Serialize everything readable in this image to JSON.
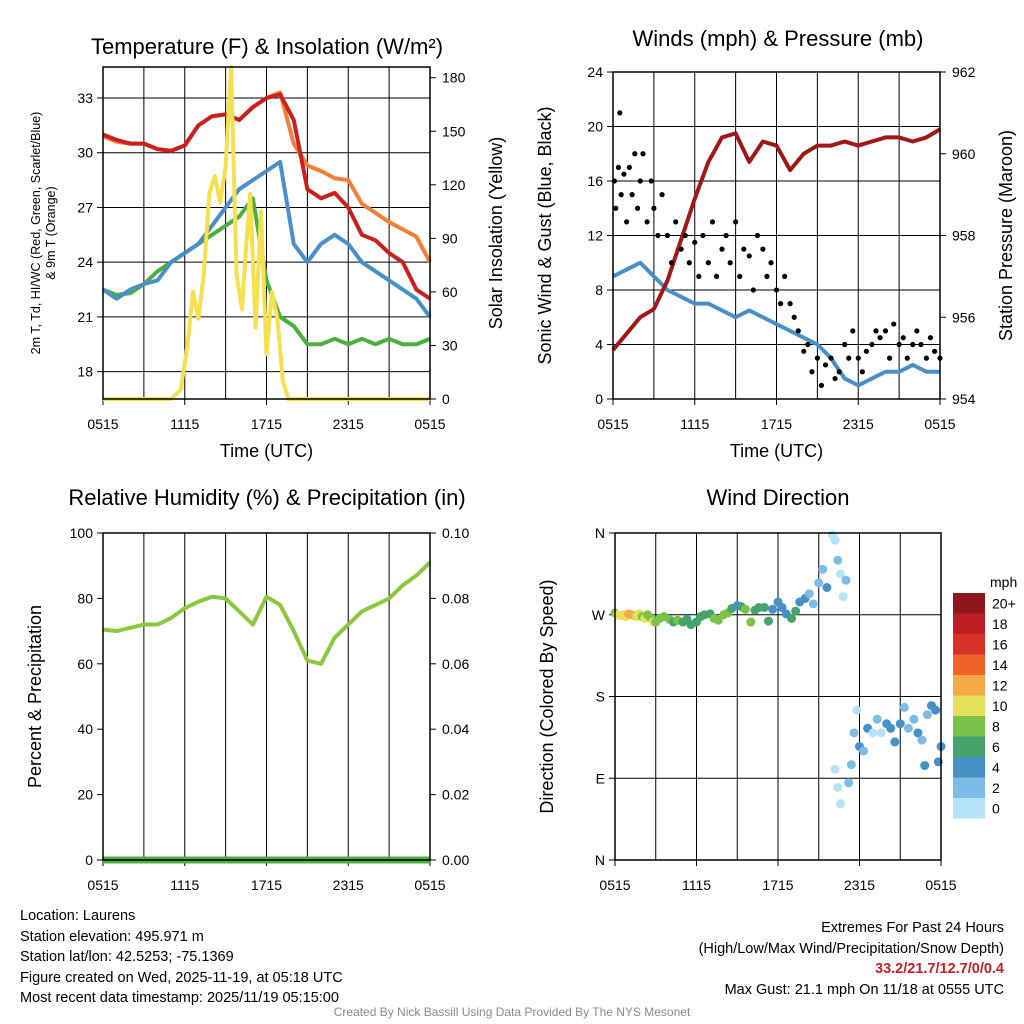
{
  "footer": {
    "location": "Location: Laurens",
    "elevation": "Station elevation: 495.971 m",
    "latlon": "Station lat/lon: 42.5253; -75.1369",
    "created": "Figure created on Wed, 2025-11-19, at 05:18 UTC",
    "recent": "Most recent data timestamp: 2025/11/19 05:15:00",
    "extremes_title": "Extremes For Past 24 Hours",
    "extremes_sub": "(High/Low/Max Wind/Precipitation/Snow Depth)",
    "extremes_values": "33.2/21.7/12.7/0/0.4",
    "max_gust": "Max Gust: 21.1 mph On 11/18 at 0555 UTC",
    "credit": "Created By Nick Bassill Using Data Provided By The NYS Mesonet"
  },
  "chart_data": [
    {
      "type": "line",
      "title": "Temperature (F) & Insolation (W/m²)",
      "xlabel": "Time (UTC)",
      "ylabel": [
        "2m T, Td, HI/WC (Red, Green, Scarlet/Blue)",
        "& 9m T (Orange)"
      ],
      "y2label": "Solar Insolation (Yellow)",
      "xticks": [
        "0515",
        "1115",
        "1715",
        "2315",
        "0515"
      ],
      "ylim": [
        16.5,
        34.7
      ],
      "yticks": [
        18,
        21,
        24,
        27,
        30,
        33
      ],
      "y2lim": [
        0,
        186
      ],
      "y2ticks": [
        0,
        30,
        60,
        90,
        120,
        150,
        180
      ],
      "hgrid": true,
      "x": [
        0,
        1,
        2,
        3,
        4,
        5,
        6,
        7,
        8,
        9,
        10,
        11,
        12,
        13,
        14,
        15,
        16,
        17,
        18,
        19,
        20,
        21,
        22,
        23,
        24
      ],
      "series": [
        {
          "name": "9m T",
          "color": "#f0803a",
          "axis": "y",
          "values": [
            30.9,
            30.6,
            30.5,
            30.5,
            30.2,
            30.1,
            30.4,
            31.5,
            32.0,
            32.1,
            31.8,
            32.5,
            33.0,
            33.3,
            30.5,
            29.3,
            29.0,
            28.6,
            28.5,
            27.2,
            26.7,
            26.2,
            25.8,
            25.4,
            24.0
          ]
        },
        {
          "name": "2m T",
          "color": "#cc2020",
          "axis": "y",
          "values": [
            31.0,
            30.7,
            30.5,
            30.5,
            30.2,
            30.1,
            30.4,
            31.5,
            32.0,
            32.1,
            31.8,
            32.5,
            33.0,
            33.2,
            31.8,
            28.0,
            27.5,
            27.8,
            27.0,
            25.5,
            25.2,
            24.5,
            24.0,
            22.5,
            22.0
          ]
        },
        {
          "name": "Td",
          "color": "#4cb040",
          "axis": "y",
          "values": [
            22.5,
            22.2,
            22.3,
            22.8,
            23.5,
            24.0,
            24.5,
            25.0,
            25.5,
            26.0,
            26.5,
            27.5,
            23.0,
            21.0,
            20.5,
            19.5,
            19.5,
            19.8,
            19.5,
            19.8,
            19.5,
            19.8,
            19.5,
            19.5,
            19.8
          ]
        },
        {
          "name": "HI/WC",
          "color": "#4a90c8",
          "axis": "y",
          "values": [
            22.5,
            22.0,
            22.5,
            22.8,
            23.0,
            24.0,
            24.5,
            25.0,
            26.0,
            27.0,
            28.0,
            28.5,
            29.0,
            29.5,
            25.0,
            24.0,
            25.0,
            25.5,
            25.0,
            24.0,
            23.5,
            23.0,
            22.5,
            22.0,
            21.0
          ]
        },
        {
          "name": "Solar Insolation",
          "color": "#f5e050",
          "axis": "y2",
          "x": [
            0,
            5,
            5.7,
            6.2,
            6.6,
            7,
            7.4,
            7.8,
            8.2,
            8.6,
            9,
            9.4,
            9.8,
            10.2,
            10.5,
            10.8,
            11.2,
            11.6,
            12,
            12.4,
            12.8,
            13.2,
            13.6,
            14,
            14.4,
            24
          ],
          "values": [
            0,
            0,
            5,
            30,
            60,
            45,
            70,
            115,
            125,
            110,
            130,
            186,
            70,
            50,
            85,
            115,
            40,
            105,
            25,
            60,
            45,
            10,
            0,
            0,
            0,
            0
          ]
        }
      ]
    },
    {
      "type": "line",
      "title": "Winds (mph) & Pressure (mb)",
      "xlabel": "Time (UTC)",
      "ylabel": [
        "Sonic Wind & Gust (Blue, Black)"
      ],
      "y2label": "Station Pressure (Maroon)",
      "xticks": [
        "0515",
        "1115",
        "1715",
        "2315",
        "0515"
      ],
      "ylim": [
        0,
        24
      ],
      "yticks": [
        0,
        4,
        8,
        12,
        16,
        20,
        24
      ],
      "y2lim": [
        954,
        962
      ],
      "y2ticks": [
        954,
        956,
        958,
        960,
        962
      ],
      "hgrid": true,
      "x": [
        0,
        1,
        2,
        3,
        4,
        5,
        6,
        7,
        8,
        9,
        10,
        11,
        12,
        13,
        14,
        15,
        16,
        17,
        18,
        19,
        20,
        21,
        22,
        23,
        24
      ],
      "series": [
        {
          "name": "Sonic Wind",
          "color": "#4a90c8",
          "axis": "y",
          "values": [
            9,
            9.5,
            10,
            9,
            8,
            7.5,
            7,
            7,
            6.5,
            6,
            6.5,
            6,
            5.5,
            5,
            4.5,
            4,
            3,
            1.5,
            1,
            1.5,
            2,
            2,
            2.5,
            2,
            2
          ]
        },
        {
          "name": "Station Pressure",
          "color": "#a01818",
          "axis": "y2",
          "values": [
            955.2,
            955.6,
            956.0,
            956.2,
            956.9,
            957.9,
            958.9,
            959.8,
            960.4,
            960.5,
            959.8,
            960.3,
            960.2,
            959.6,
            960.0,
            960.2,
            960.2,
            960.3,
            960.2,
            960.3,
            960.4,
            960.4,
            960.3,
            960.4,
            960.6
          ]
        }
      ],
      "gust_points": [
        [
          0.1,
          16
        ],
        [
          0.2,
          14
        ],
        [
          0.4,
          17
        ],
        [
          0.5,
          21
        ],
        [
          0.6,
          15
        ],
        [
          0.8,
          16.5
        ],
        [
          1,
          13
        ],
        [
          1.2,
          17
        ],
        [
          1.4,
          15
        ],
        [
          1.6,
          18
        ],
        [
          1.8,
          14
        ],
        [
          2,
          16
        ],
        [
          2.2,
          18
        ],
        [
          2.5,
          13
        ],
        [
          2.8,
          16
        ],
        [
          3,
          14
        ],
        [
          3.3,
          12
        ],
        [
          3.6,
          15
        ],
        [
          4,
          12
        ],
        [
          4.3,
          10
        ],
        [
          4.6,
          13
        ],
        [
          5,
          11
        ],
        [
          5.3,
          12
        ],
        [
          5.6,
          10
        ],
        [
          6,
          11.5
        ],
        [
          6.3,
          9
        ],
        [
          6.6,
          12
        ],
        [
          7,
          10
        ],
        [
          7.3,
          13
        ],
        [
          7.6,
          9
        ],
        [
          8,
          11
        ],
        [
          8.3,
          12
        ],
        [
          8.6,
          10
        ],
        [
          9,
          13
        ],
        [
          9.3,
          9
        ],
        [
          9.6,
          11
        ],
        [
          10,
          10.5
        ],
        [
          10.3,
          8
        ],
        [
          10.6,
          12
        ],
        [
          11,
          11
        ],
        [
          11.3,
          9
        ],
        [
          11.6,
          10
        ],
        [
          12,
          8
        ],
        [
          12.3,
          7
        ],
        [
          12.6,
          9
        ],
        [
          13,
          7
        ],
        [
          13.3,
          6
        ],
        [
          13.6,
          5
        ],
        [
          14,
          3.5
        ],
        [
          14.3,
          4
        ],
        [
          14.6,
          2
        ],
        [
          15,
          3
        ],
        [
          15.3,
          1
        ],
        [
          15.6,
          2.5
        ],
        [
          16,
          3
        ],
        [
          16.3,
          1.5
        ],
        [
          16.6,
          2
        ],
        [
          17,
          4
        ],
        [
          17.3,
          3
        ],
        [
          17.6,
          5
        ],
        [
          18,
          3
        ],
        [
          18.3,
          2
        ],
        [
          18.6,
          3.5
        ],
        [
          19,
          4
        ],
        [
          19.3,
          5
        ],
        [
          19.6,
          4.5
        ],
        [
          20,
          5
        ],
        [
          20.3,
          3
        ],
        [
          20.6,
          5.5
        ],
        [
          21,
          4
        ],
        [
          21.3,
          4.5
        ],
        [
          21.6,
          3
        ],
        [
          22,
          4
        ],
        [
          22.3,
          5
        ],
        [
          22.6,
          4
        ],
        [
          23,
          3
        ],
        [
          23.3,
          4.5
        ],
        [
          23.6,
          3.5
        ],
        [
          24,
          3
        ]
      ],
      "gust_color": "#000000"
    },
    {
      "type": "line",
      "title": "Relative Humidity (%) & Precipitation (in)",
      "xlabel": "",
      "ylabel": [
        "Percent & Precipitation"
      ],
      "y2label": "",
      "xticks": [
        "0515",
        "1115",
        "1715",
        "2315",
        "0515"
      ],
      "ylim": [
        0,
        100
      ],
      "yticks": [
        0,
        20,
        40,
        60,
        80,
        100
      ],
      "y2lim": [
        0,
        0.1
      ],
      "y2ticks": [
        "0.00",
        "0.02",
        "0.04",
        "0.06",
        "0.08",
        "0.10"
      ],
      "hgrid": false,
      "x": [
        0,
        1,
        2,
        3,
        4,
        5,
        6,
        7,
        8,
        9,
        10,
        11,
        12,
        13,
        14,
        15,
        16,
        17,
        18,
        19,
        20,
        21,
        22,
        23,
        24
      ],
      "series": [
        {
          "name": "Relative Humidity",
          "color": "#8dc63f",
          "axis": "y",
          "values": [
            70.5,
            70,
            71,
            72,
            72,
            74,
            77,
            79,
            80.5,
            80,
            76,
            72,
            80.5,
            78,
            70,
            61,
            60,
            68,
            72,
            76,
            78,
            80,
            84,
            87,
            91
          ]
        },
        {
          "name": "Precipitation",
          "color": "#4cb040",
          "axis": "y2",
          "values": [
            0,
            0,
            0,
            0,
            0,
            0,
            0,
            0,
            0,
            0,
            0,
            0,
            0,
            0,
            0,
            0,
            0,
            0,
            0,
            0,
            0,
            0,
            0,
            0,
            0
          ]
        }
      ]
    },
    {
      "type": "scatter",
      "title": "Wind Direction",
      "xlabel": "",
      "ylabel": [
        "Direction (Colored By Speed)"
      ],
      "xticks": [
        "0515",
        "1115",
        "1715",
        "2315",
        "0515"
      ],
      "ylim": [
        0,
        360
      ],
      "yticks": [
        0,
        90,
        180,
        270,
        360
      ],
      "ytick_labels": [
        "N",
        "E",
        "S",
        "W",
        "N"
      ],
      "hgrid": true,
      "colorbar": {
        "title": "mph",
        "labels": [
          "0",
          "2",
          "4",
          "6",
          "8",
          "10",
          "12",
          "14",
          "16",
          "18",
          "20+"
        ],
        "colors": [
          "#b5e3f8",
          "#7ebce6",
          "#4790c8",
          "#47a36c",
          "#7bc24a",
          "#e7e05a",
          "#f6a947",
          "#ef632b",
          "#d93227",
          "#bb1e24",
          "#8f161a"
        ]
      },
      "points": [
        [
          0,
          272,
          8
        ],
        [
          0.2,
          270,
          10
        ],
        [
          0.4,
          269,
          10
        ],
        [
          0.6,
          270,
          11
        ],
        [
          0.8,
          268,
          10
        ],
        [
          1,
          271,
          12
        ],
        [
          1.2,
          270,
          13
        ],
        [
          1.4,
          269,
          12
        ],
        [
          1.6,
          268,
          10
        ],
        [
          1.8,
          271,
          10
        ],
        [
          2,
          268,
          9
        ],
        [
          2.2,
          266,
          10
        ],
        [
          2.4,
          270,
          8
        ],
        [
          2.6,
          267,
          8
        ],
        [
          2.8,
          262,
          10
        ],
        [
          3,
          262,
          8
        ],
        [
          3.3,
          266,
          8
        ],
        [
          3.6,
          268,
          8
        ],
        [
          4,
          265,
          8
        ],
        [
          4.3,
          262,
          6
        ],
        [
          4.6,
          264,
          8
        ],
        [
          5,
          262,
          6
        ],
        [
          5.3,
          265,
          6
        ],
        [
          5.6,
          259,
          7
        ],
        [
          6,
          262,
          6
        ],
        [
          6.3,
          268,
          6
        ],
        [
          6.6,
          270,
          6
        ],
        [
          7,
          271,
          6
        ],
        [
          7.3,
          266,
          8
        ],
        [
          7.6,
          264,
          8
        ],
        [
          8,
          270,
          8
        ],
        [
          8.3,
          272,
          8
        ],
        [
          8.6,
          277,
          6
        ],
        [
          9,
          280,
          4
        ],
        [
          9.3,
          279,
          6
        ],
        [
          9.6,
          276,
          8
        ],
        [
          10,
          262,
          8
        ],
        [
          10.3,
          275,
          6
        ],
        [
          10.6,
          278,
          7
        ],
        [
          11,
          278,
          7
        ],
        [
          11.3,
          263,
          6
        ],
        [
          11.6,
          276,
          4
        ],
        [
          12,
          284,
          4
        ],
        [
          12.3,
          278,
          4
        ],
        [
          12.6,
          271,
          4
        ],
        [
          13,
          266,
          6
        ],
        [
          13.3,
          274,
          6
        ],
        [
          13.6,
          284,
          4
        ],
        [
          14,
          288,
          4
        ],
        [
          14.3,
          293,
          2
        ],
        [
          14.6,
          282,
          2
        ],
        [
          15,
          305,
          2
        ],
        [
          15.3,
          320,
          2
        ],
        [
          15.6,
          300,
          4
        ],
        [
          16,
          358,
          0
        ],
        [
          16.2,
          352,
          0
        ],
        [
          16.4,
          330,
          2
        ],
        [
          16.6,
          315,
          0
        ],
        [
          16.8,
          290,
          0
        ],
        [
          17,
          308,
          2
        ],
        [
          16.2,
          100,
          0
        ],
        [
          16.4,
          80,
          0
        ],
        [
          16.6,
          62,
          0
        ],
        [
          17.2,
          85,
          2
        ],
        [
          17.4,
          105,
          2
        ],
        [
          17.6,
          140,
          2
        ],
        [
          17.8,
          165,
          0
        ],
        [
          18,
          125,
          4
        ],
        [
          18.3,
          120,
          2
        ],
        [
          18.6,
          145,
          4
        ],
        [
          19,
          140,
          0
        ],
        [
          19.3,
          155,
          2
        ],
        [
          19.6,
          140,
          0
        ],
        [
          20,
          150,
          4
        ],
        [
          20.3,
          145,
          4
        ],
        [
          20.6,
          130,
          4
        ],
        [
          21,
          150,
          4
        ],
        [
          21.3,
          168,
          2
        ],
        [
          21.6,
          145,
          2
        ],
        [
          22,
          155,
          2
        ],
        [
          22.3,
          140,
          4
        ],
        [
          22.6,
          132,
          2
        ],
        [
          23,
          160,
          2
        ],
        [
          23.3,
          170,
          4
        ],
        [
          23.6,
          165,
          4
        ],
        [
          24,
          125,
          4
        ],
        [
          23.8,
          108,
          4
        ],
        [
          22.8,
          104,
          4
        ]
      ]
    }
  ]
}
